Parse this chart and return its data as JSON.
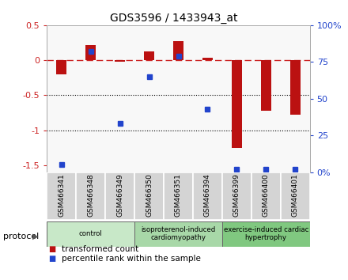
{
  "title": "GDS3596 / 1433943_at",
  "samples": [
    "GSM466341",
    "GSM466348",
    "GSM466349",
    "GSM466350",
    "GSM466351",
    "GSM466394",
    "GSM466399",
    "GSM466400",
    "GSM466401"
  ],
  "red_values": [
    -0.2,
    0.22,
    -0.02,
    0.13,
    0.27,
    0.04,
    -1.25,
    -0.72,
    -0.78
  ],
  "blue_values_pct": [
    5,
    82,
    33,
    65,
    79,
    43,
    2,
    2,
    2
  ],
  "groups": [
    {
      "label": "control",
      "start": 0,
      "end": 3,
      "color": "#c8e8c8"
    },
    {
      "label": "isoproterenol-induced\ncardiomyopathy",
      "start": 3,
      "end": 6,
      "color": "#a8d8a8"
    },
    {
      "label": "exercise-induced cardiac\nhypertrophy",
      "start": 6,
      "end": 9,
      "color": "#80c880"
    }
  ],
  "ylim_left": [
    -1.6,
    0.5
  ],
  "ylim_right": [
    0,
    100
  ],
  "red_color": "#bb1111",
  "blue_color": "#2244cc",
  "dashed_line_color": "#cc2222",
  "plot_bg": "#f8f8f8",
  "bar_width": 0.35,
  "marker_size": 5
}
